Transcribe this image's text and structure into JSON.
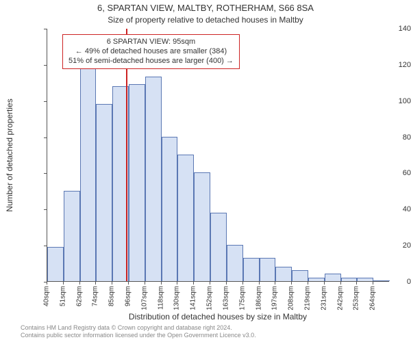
{
  "title": "6, SPARTAN VIEW, MALTBY, ROTHERHAM, S66 8SA",
  "subtitle": "Size of property relative to detached houses in Maltby",
  "y_axis": {
    "label": "Number of detached properties",
    "min": 0,
    "max": 140,
    "tick_step": 20,
    "ticks": [
      0,
      20,
      40,
      60,
      80,
      100,
      120,
      140
    ]
  },
  "x_axis": {
    "label": "Distribution of detached houses by size in Maltby",
    "tick_suffix": "sqm"
  },
  "chart": {
    "type": "histogram",
    "bar_fill": "#d6e1f4",
    "bar_stroke": "#5a77b3",
    "bar_stroke_width": 1,
    "background": "#ffffff",
    "bins_start_at": 40,
    "bins_label_step": 11.3,
    "bins": [
      {
        "label": "40sqm",
        "value": 19
      },
      {
        "label": "51sqm",
        "value": 50
      },
      {
        "label": "62sqm",
        "value": 118
      },
      {
        "label": "74sqm",
        "value": 98
      },
      {
        "label": "85sqm",
        "value": 108
      },
      {
        "label": "96sqm",
        "value": 109
      },
      {
        "label": "107sqm",
        "value": 113
      },
      {
        "label": "118sqm",
        "value": 80
      },
      {
        "label": "130sqm",
        "value": 70
      },
      {
        "label": "141sqm",
        "value": 60
      },
      {
        "label": "152sqm",
        "value": 38
      },
      {
        "label": "163sqm",
        "value": 20
      },
      {
        "label": "175sqm",
        "value": 13
      },
      {
        "label": "186sqm",
        "value": 13
      },
      {
        "label": "197sqm",
        "value": 8
      },
      {
        "label": "208sqm",
        "value": 6
      },
      {
        "label": "219sqm",
        "value": 2
      },
      {
        "label": "231sqm",
        "value": 4
      },
      {
        "label": "242sqm",
        "value": 2
      },
      {
        "label": "253sqm",
        "value": 2
      },
      {
        "label": "264sqm",
        "value": 0
      }
    ]
  },
  "marker": {
    "value_sqm": 95,
    "color": "#cc2222"
  },
  "callout": {
    "border_color": "#cc2222",
    "border_width": 1,
    "lines": [
      "6 SPARTAN VIEW: 95sqm",
      "← 49% of detached houses are smaller (384)",
      "51% of semi-detached houses are larger (400) →"
    ]
  },
  "footer": {
    "line1": "Contains HM Land Registry data © Crown copyright and database right 2024.",
    "line2": "Contains public sector information licensed under the Open Government Licence v3.0."
  },
  "typography": {
    "title_fontsize": 13,
    "subtitle_fontsize": 12,
    "axis_label_fontsize": 12,
    "tick_fontsize": 11,
    "callout_fontsize": 11,
    "footer_fontsize": 9
  }
}
